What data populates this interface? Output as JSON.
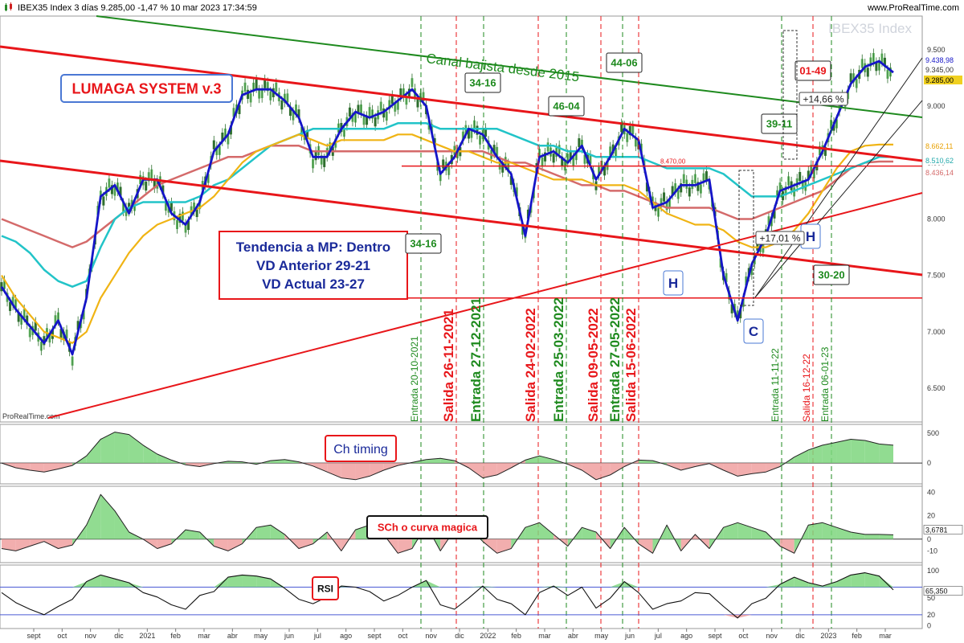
{
  "header": {
    "instrument": "IBEX35 Index 3 días 9.285,00 -1,47 % 10 mar 2023 17:34:59",
    "brand": "www.ProRealTime.com",
    "watermark": "IBEX35 Index",
    "footer_brand": "ProRealTime.com"
  },
  "colors": {
    "price": "#3a7a2a",
    "red_line": "#e8161a",
    "green_line": "#1e8a1e",
    "blue_line": "#1515c8",
    "cyan_ma": "#22c4c8",
    "yellow_ma": "#f0b414",
    "brown_ma": "#d46a6a",
    "osc_green": "#7ed67e",
    "osc_red": "#f0a0a0"
  },
  "chart_data": [
    {
      "type": "line",
      "name": "IBEX35 price panel",
      "y_ticks": [
        "9.500",
        "9.000",
        "8.500",
        "8.000",
        "7.500",
        "7.000",
        "6.500"
      ],
      "ylim": [
        6200,
        9800
      ],
      "x_ticks": [
        "sept",
        "oct",
        "nov",
        "dic",
        "2021",
        "feb",
        "mar",
        "abr",
        "may",
        "jun",
        "jul",
        "ago",
        "sept",
        "oct",
        "nov",
        "dic",
        "2022",
        "feb",
        "mar",
        "abr",
        "may",
        "jun",
        "jul",
        "ago",
        "sept",
        "oct",
        "nov",
        "dic",
        "2023",
        "feb",
        "mar"
      ],
      "series": [
        {
          "values": [
            7400,
            7200,
            7050,
            6900,
            7100,
            6800,
            7300,
            8200,
            8300,
            8050,
            8350,
            8350,
            8050,
            7950,
            8150,
            8600,
            8750,
            9100,
            9150,
            9150,
            9050,
            8900,
            8550,
            8550,
            8800,
            8950,
            8900,
            8950,
            9050,
            9150,
            9000,
            8400,
            8550,
            8800,
            8750,
            8550,
            8400,
            7850,
            8550,
            8600,
            8500,
            8650,
            8350,
            8550,
            8800,
            8700,
            8100,
            8150,
            8300,
            8300,
            8350,
            7500,
            7100,
            7600,
            7850,
            8250,
            8300,
            8350,
            8600,
            8900,
            9200,
            9350,
            9400,
            9300
          ]
        },
        {
          "values": [
            7850,
            7800,
            7700,
            7550,
            7450,
            7400,
            7450,
            7750,
            8000,
            8100,
            8150,
            8150,
            8150,
            8150,
            8200,
            8300,
            8350,
            8450,
            8550,
            8650,
            8700,
            8750,
            8800,
            8800,
            8800,
            8800,
            8800,
            8800,
            8850,
            8850,
            8850,
            8800,
            8800,
            8800,
            8800,
            8800,
            8750,
            8700,
            8650,
            8650,
            8600,
            8600,
            8550,
            8550,
            8550,
            8550,
            8500,
            8450,
            8450,
            8450,
            8450,
            8400,
            8300,
            8200,
            8200,
            8200,
            8250,
            8300,
            8350,
            8400,
            8450,
            8500,
            8550,
            8550
          ]
        },
        {
          "values": [
            8000,
            7950,
            7900,
            7850,
            7800,
            7750,
            7800,
            7900,
            8000,
            8100,
            8200,
            8300,
            8350,
            8400,
            8450,
            8500,
            8550,
            8550,
            8600,
            8650,
            8650,
            8650,
            8600,
            8600,
            8600,
            8600,
            8600,
            8600,
            8600,
            8600,
            8600,
            8600,
            8600,
            8600,
            8600,
            8550,
            8500,
            8500,
            8450,
            8400,
            8350,
            8300,
            8300,
            8250,
            8250,
            8200,
            8150,
            8100,
            8100,
            8100,
            8100,
            8050,
            8000,
            8000,
            8050,
            8100,
            8150,
            8200,
            8250,
            8350,
            8450,
            8500,
            8510,
            8510
          ]
        },
        {
          "values": [
            7500,
            7300,
            7150,
            7000,
            6950,
            6900,
            7000,
            7300,
            7500,
            7700,
            7850,
            7950,
            8000,
            8050,
            8100,
            8200,
            8350,
            8500,
            8600,
            8650,
            8700,
            8750,
            8700,
            8650,
            8700,
            8700,
            8700,
            8700,
            8750,
            8750,
            8700,
            8650,
            8600,
            8600,
            8550,
            8500,
            8500,
            8450,
            8400,
            8350,
            8350,
            8350,
            8300,
            8300,
            8300,
            8250,
            8150,
            8050,
            8000,
            7950,
            7950,
            7900,
            7800,
            7750,
            7750,
            7800,
            7900,
            8050,
            8250,
            8450,
            8600,
            8650,
            8660,
            8660
          ]
        }
      ],
      "price_labels": [
        "9.438,98",
        "9.345,00",
        "9.285,00",
        "8.662,11",
        "8.510,62",
        "8.436,14"
      ],
      "levels": [
        {
          "label": "8.470,00",
          "value": 8470
        },
        {
          "label": "7.300,00",
          "value": 7300
        }
      ],
      "annotations": {
        "system_title": "LUMAGA SYSTEM v.3",
        "channel": "Canal bajista desde 2015",
        "trend_box": [
          "Tendencia a MP: Dentro",
          "VD Anterior 29-21",
          "VD Actual 23-27"
        ],
        "hc_letters": [
          "H",
          "C",
          "H"
        ],
        "pct_labels": [
          "+14,66 %",
          "+17,01 %"
        ],
        "box_counts": [
          "44-06",
          "34-16",
          "46-04",
          "34-16",
          "39-11",
          "01-49",
          "30-20"
        ],
        "signals": [
          {
            "label": "Entrada 20-10-2021",
            "kind": "entrada"
          },
          {
            "label": "Salida 26-11-2021",
            "kind": "salida"
          },
          {
            "label": "Entrada 27-12-2021",
            "kind": "entrada"
          },
          {
            "label": "Salida 24-02-2022",
            "kind": "salida"
          },
          {
            "label": "Entrada 25-03-2022",
            "kind": "entrada"
          },
          {
            "label": "Salida 09-05-2022",
            "kind": "salida"
          },
          {
            "label": "Entrada 27-05-2022",
            "kind": "entrada"
          },
          {
            "label": "Salida 15-06-2022",
            "kind": "salida"
          },
          {
            "label": "Entrada 11-11-22",
            "kind": "entrada_small"
          },
          {
            "label": "Salida 16-12-22",
            "kind": "salida_small"
          },
          {
            "label": "Entrada 06-01-23",
            "kind": "entrada_small"
          }
        ]
      }
    },
    {
      "type": "area",
      "name": "Ch timing",
      "label": "Ch timing",
      "y_ticks": [
        "500",
        "0"
      ],
      "ylim": [
        -350,
        650
      ],
      "values": [
        0,
        -80,
        -120,
        -150,
        -100,
        -40,
        120,
        400,
        520,
        480,
        300,
        150,
        50,
        -30,
        -60,
        -10,
        30,
        20,
        -20,
        40,
        60,
        20,
        -50,
        -150,
        -250,
        -280,
        -220,
        -120,
        -40,
        10,
        60,
        80,
        40,
        -80,
        -250,
        -200,
        -80,
        50,
        120,
        60,
        -20,
        -120,
        -280,
        -200,
        -60,
        50,
        40,
        -30,
        -120,
        -60,
        -10,
        -120,
        -220,
        -180,
        -150,
        -60,
        100,
        220,
        300,
        350,
        400,
        380,
        320,
        300
      ]
    },
    {
      "type": "area",
      "name": "SCh o curva magica",
      "label": "SCh o curva magica",
      "y_ticks": [
        "40",
        "20",
        "3,6781",
        "0",
        "-10"
      ],
      "ylim": [
        -20,
        45
      ],
      "values": [
        -8,
        -10,
        -6,
        -2,
        -8,
        -5,
        12,
        38,
        24,
        6,
        0,
        -8,
        -4,
        8,
        6,
        -6,
        -10,
        -4,
        10,
        12,
        4,
        -8,
        -4,
        6,
        -10,
        8,
        12,
        4,
        -12,
        -8,
        12,
        -10,
        8,
        10,
        -2,
        -12,
        -8,
        10,
        14,
        4,
        -6,
        10,
        6,
        -8,
        10,
        -4,
        -12,
        12,
        -10,
        4,
        -8,
        10,
        14,
        10,
        6,
        -6,
        -12,
        12,
        14,
        10,
        6,
        4,
        4,
        3.68
      ]
    },
    {
      "type": "line",
      "name": "RSI",
      "label": "RSI",
      "y_ticks": [
        "100",
        "50",
        "20",
        "0"
      ],
      "ylim": [
        -5,
        110
      ],
      "value_label": "65,350",
      "values": [
        60,
        42,
        30,
        20,
        35,
        48,
        80,
        92,
        85,
        78,
        60,
        52,
        38,
        30,
        55,
        62,
        88,
        92,
        90,
        85,
        68,
        48,
        40,
        52,
        72,
        70,
        62,
        45,
        55,
        70,
        82,
        38,
        30,
        50,
        72,
        48,
        40,
        20,
        60,
        72,
        55,
        70,
        32,
        50,
        80,
        60,
        30,
        40,
        45,
        60,
        58,
        35,
        14,
        40,
        50,
        75,
        88,
        78,
        72,
        80,
        92,
        96,
        90,
        65
      ]
    }
  ]
}
